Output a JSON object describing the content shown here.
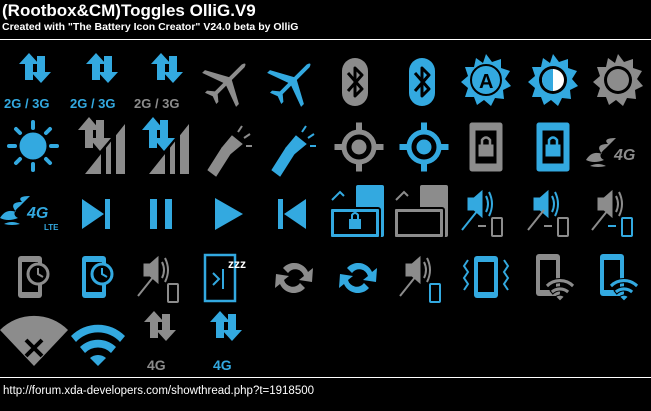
{
  "header": {
    "title": "(Rootbox&CM)Toggles OlliG.V9",
    "subtitle": "Created with \"The Battery Icon Creator\" V24.0 beta by OlliG"
  },
  "footer": {
    "link": "http://forum.xda-developers.com/showthread.php?t=1918500"
  },
  "colors": {
    "background": "#000000",
    "active": "#33a9e0",
    "inactive": "#8c8c8c",
    "text": "#ffffff"
  },
  "icon_labels": {
    "network_2g3g": "2G / 3G",
    "network_4g": "4G",
    "lte": "LTE",
    "auto_brightness": "A",
    "sleep": "zzz"
  },
  "icons": [
    {
      "name": "data-2g3g-icon",
      "state": "active"
    },
    {
      "name": "data-2g3g-icon",
      "state": "active"
    },
    {
      "name": "data-2g3g-icon",
      "state": "mixed"
    },
    {
      "name": "airplane-icon",
      "state": "inactive"
    },
    {
      "name": "airplane-icon",
      "state": "active"
    },
    {
      "name": "bluetooth-icon",
      "state": "inactive"
    },
    {
      "name": "bluetooth-icon",
      "state": "active"
    },
    {
      "name": "brightness-auto-icon",
      "state": "active"
    },
    {
      "name": "brightness-half-icon",
      "state": "active"
    },
    {
      "name": "brightness-low-icon",
      "state": "inactive"
    },
    {
      "name": "brightness-high-icon",
      "state": "active"
    },
    {
      "name": "mobile-signal-icon",
      "state": "inactive"
    },
    {
      "name": "mobile-signal-icon",
      "state": "active"
    },
    {
      "name": "flashlight-icon",
      "state": "inactive"
    },
    {
      "name": "flashlight-icon",
      "state": "active"
    },
    {
      "name": "gps-icon",
      "state": "inactive"
    },
    {
      "name": "gps-icon",
      "state": "active"
    },
    {
      "name": "screen-lock-icon",
      "state": "inactive"
    },
    {
      "name": "screen-lock-icon",
      "state": "active"
    },
    {
      "name": "4g-fire-icon",
      "state": "inactive"
    },
    {
      "name": "lte-fire-icon",
      "state": "active"
    },
    {
      "name": "next-track-icon",
      "state": "active"
    },
    {
      "name": "pause-icon",
      "state": "active"
    },
    {
      "name": "play-icon",
      "state": "active"
    },
    {
      "name": "previous-track-icon",
      "state": "active"
    },
    {
      "name": "rotation-lock-icon",
      "state": "active"
    },
    {
      "name": "rotation-icon",
      "state": "inactive"
    },
    {
      "name": "sound-vibrate-icon",
      "state": "mixed"
    },
    {
      "name": "sound-vibrate-icon",
      "state": "mixed"
    },
    {
      "name": "sound-vibrate-icon",
      "state": "mixed"
    },
    {
      "name": "screen-timeout-icon",
      "state": "inactive"
    },
    {
      "name": "screen-timeout-icon",
      "state": "active"
    },
    {
      "name": "sound-vibrate-icon",
      "state": "mixed"
    },
    {
      "name": "sleep-icon",
      "state": "active"
    },
    {
      "name": "sync-icon",
      "state": "inactive"
    },
    {
      "name": "sync-icon",
      "state": "active"
    },
    {
      "name": "sound-vibrate-icon",
      "state": "mixed"
    },
    {
      "name": "vibrate-icon",
      "state": "active"
    },
    {
      "name": "wifi-ap-icon",
      "state": "inactive"
    },
    {
      "name": "wifi-ap-icon",
      "state": "active"
    },
    {
      "name": "wifi-off-icon",
      "state": "inactive"
    },
    {
      "name": "wifi-icon",
      "state": "active"
    },
    {
      "name": "data-4g-icon",
      "state": "inactive"
    },
    {
      "name": "data-4g-icon",
      "state": "active"
    }
  ]
}
